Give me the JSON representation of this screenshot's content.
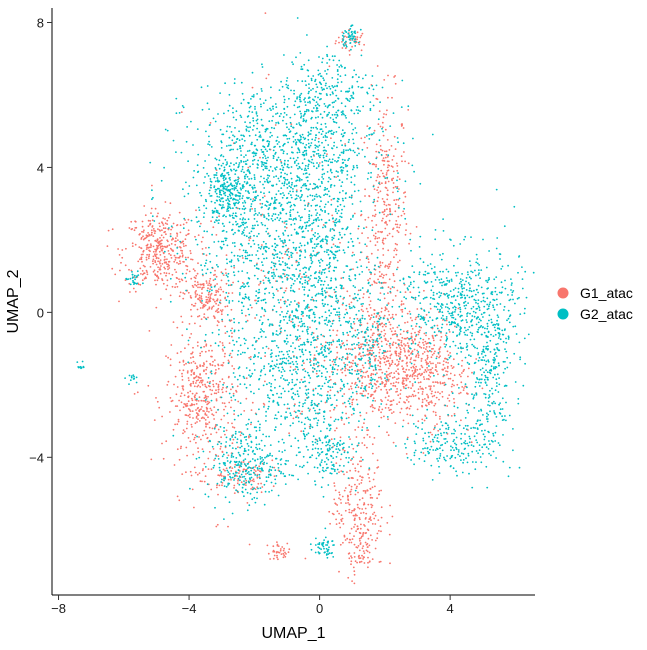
{
  "chart_data": {
    "type": "scatter",
    "title": "",
    "xlabel": "UMAP_1",
    "ylabel": "UMAP_2",
    "xlim": [
      -8.2,
      6.6
    ],
    "ylim": [
      -7.8,
      8.4
    ],
    "xticks": [
      -8,
      -4,
      0,
      4
    ],
    "yticks": [
      -4,
      0,
      4,
      8
    ],
    "xtick_labels": [
      "−8",
      "−4",
      "0",
      "4"
    ],
    "ytick_labels": [
      "−4",
      "0",
      "4",
      "8"
    ],
    "grid": false,
    "legend_position": "right",
    "series": [
      {
        "name": "G1_atac",
        "color": "#F8766D",
        "clusters": [
          {
            "cx": 1.0,
            "cy": 7.5,
            "sx": 0.25,
            "sy": 0.15,
            "n": 40
          },
          {
            "cx": 2.0,
            "cy": 2.8,
            "sx": 0.35,
            "sy": 1.6,
            "n": 320
          },
          {
            "cx": -4.9,
            "cy": 1.7,
            "sx": 0.55,
            "sy": 0.55,
            "n": 380
          },
          {
            "cx": -3.5,
            "cy": 0.4,
            "sx": 0.35,
            "sy": 0.35,
            "n": 160
          },
          {
            "cx": -3.6,
            "cy": -2.4,
            "sx": 0.55,
            "sy": 0.95,
            "n": 420
          },
          {
            "cx": 2.0,
            "cy": -1.3,
            "sx": 0.9,
            "sy": 0.9,
            "n": 650
          },
          {
            "cx": 3.3,
            "cy": -1.8,
            "sx": 0.6,
            "sy": 0.7,
            "n": 250
          },
          {
            "cx": 1.2,
            "cy": -5.4,
            "sx": 0.4,
            "sy": 0.9,
            "n": 260
          },
          {
            "cx": -1.2,
            "cy": -6.6,
            "sx": 0.2,
            "sy": 0.12,
            "n": 35
          },
          {
            "cx": 1.2,
            "cy": -6.8,
            "sx": 0.2,
            "sy": 0.12,
            "n": 25
          },
          {
            "cx": -2.5,
            "cy": -4.5,
            "sx": 0.45,
            "sy": 0.25,
            "n": 90
          },
          {
            "cx": -1.0,
            "cy": 0.0,
            "sx": 1.6,
            "sy": 2.5,
            "n": 260
          }
        ]
      },
      {
        "name": "G2_atac",
        "color": "#00BFC4",
        "clusters": [
          {
            "cx": -1.0,
            "cy": 4.3,
            "sx": 1.5,
            "sy": 1.0,
            "n": 950
          },
          {
            "cx": 0.2,
            "cy": 6.0,
            "sx": 0.7,
            "sy": 0.7,
            "n": 220
          },
          {
            "cx": 0.9,
            "cy": 7.6,
            "sx": 0.15,
            "sy": 0.15,
            "n": 50
          },
          {
            "cx": -2.8,
            "cy": 3.2,
            "sx": 0.4,
            "sy": 0.4,
            "n": 220
          },
          {
            "cx": -1.5,
            "cy": 1.6,
            "sx": 1.2,
            "sy": 1.2,
            "n": 650
          },
          {
            "cx": 0.2,
            "cy": 1.5,
            "sx": 0.6,
            "sy": 1.2,
            "n": 320
          },
          {
            "cx": 4.2,
            "cy": 0.2,
            "sx": 1.0,
            "sy": 0.8,
            "n": 560
          },
          {
            "cx": 5.2,
            "cy": -1.8,
            "sx": 0.4,
            "sy": 1.1,
            "n": 260
          },
          {
            "cx": 4.0,
            "cy": -3.6,
            "sx": 0.6,
            "sy": 0.4,
            "n": 180
          },
          {
            "cx": -0.5,
            "cy": -1.6,
            "sx": 1.2,
            "sy": 1.2,
            "n": 780
          },
          {
            "cx": -2.3,
            "cy": -4.2,
            "sx": 0.6,
            "sy": 0.5,
            "n": 280
          },
          {
            "cx": 0.2,
            "cy": -3.9,
            "sx": 0.4,
            "sy": 0.4,
            "n": 130
          },
          {
            "cx": 0.1,
            "cy": -6.5,
            "sx": 0.2,
            "sy": 0.15,
            "n": 50
          },
          {
            "cx": -5.7,
            "cy": 0.9,
            "sx": 0.12,
            "sy": 0.12,
            "n": 25
          },
          {
            "cx": -7.3,
            "cy": -1.5,
            "sx": 0.06,
            "sy": 0.06,
            "n": 10
          },
          {
            "cx": -5.8,
            "cy": -1.8,
            "sx": 0.08,
            "sy": 0.08,
            "n": 12
          },
          {
            "cx": 1.5,
            "cy": -0.5,
            "sx": 0.3,
            "sy": 0.8,
            "n": 90
          }
        ]
      }
    ]
  }
}
